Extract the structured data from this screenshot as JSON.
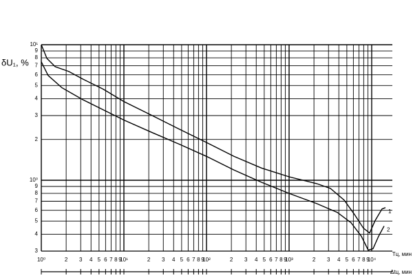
{
  "chart_data": {
    "type": "line",
    "y_label": "δU₁, %",
    "x_label": "Tц, мин",
    "x2_label": "Δtц, мин",
    "xscale": "log",
    "yscale": "log",
    "grid": true,
    "xlim": [
      1,
      17783
    ],
    "ylim": [
      0.3,
      10
    ],
    "xticks": [
      {
        "value": 1,
        "label": "10⁰"
      },
      2,
      3,
      4,
      5,
      6,
      7,
      8,
      9,
      {
        "value": 10,
        "label": "10¹"
      },
      {
        "value": 20,
        "label": "2"
      },
      {
        "value": 30,
        "label": "3"
      },
      {
        "value": 40,
        "label": "4"
      },
      {
        "value": 50,
        "label": "5"
      },
      {
        "value": 60,
        "label": "6"
      },
      {
        "value": 70,
        "label": "7"
      },
      {
        "value": 80,
        "label": "8"
      },
      {
        "value": 90,
        "label": "9"
      },
      {
        "value": 100,
        "label": "10²"
      },
      {
        "value": 200,
        "label": "2"
      },
      {
        "value": 300,
        "label": "3"
      },
      {
        "value": 400,
        "label": "4"
      },
      {
        "value": 500,
        "label": "5"
      },
      {
        "value": 600,
        "label": "6"
      },
      {
        "value": 700,
        "label": "7"
      },
      {
        "value": 800,
        "label": "8"
      },
      {
        "value": 900,
        "label": "9"
      },
      {
        "value": 1000,
        "label": "10³"
      },
      {
        "value": 2000,
        "label": "2"
      },
      {
        "value": 3000,
        "label": "3"
      },
      {
        "value": 4000,
        "label": "4"
      },
      {
        "value": 5000,
        "label": "5"
      },
      {
        "value": 6000,
        "label": "6"
      },
      {
        "value": 7000,
        "label": "7"
      },
      {
        "value": 8000,
        "label": "8"
      },
      {
        "value": 9000,
        "label": "9"
      },
      {
        "value": 10000,
        "label": "10⁴"
      }
    ],
    "yticks": [
      {
        "value": 0.3,
        "label": "3"
      },
      {
        "value": 0.4,
        "label": "4"
      },
      {
        "value": 0.5,
        "label": "5"
      },
      {
        "value": 0.6,
        "label": "6"
      },
      {
        "value": 0.7,
        "label": "7"
      },
      {
        "value": 0.8,
        "label": "8"
      },
      {
        "value": 0.9,
        "label": "9"
      },
      {
        "value": 1,
        "label": "10⁰"
      },
      2,
      3,
      4,
      5,
      6,
      7,
      8,
      9,
      {
        "value": 10,
        "label": "10¹"
      }
    ],
    "series": [
      {
        "name": "1",
        "color": "#000000",
        "x": [
          1,
          1.17,
          1.47,
          2.15,
          3.16,
          5.62,
          10,
          21.5,
          46.4,
          100,
          215,
          464,
          1000,
          2154,
          3162,
          4642,
          6190,
          7943,
          9440,
          11010,
          13340,
          14680
        ],
        "values": [
          10,
          7.92,
          6.89,
          6.35,
          5.59,
          4.7,
          3.81,
          3.02,
          2.39,
          1.9,
          1.5,
          1.23,
          1.06,
          0.944,
          0.87,
          0.714,
          0.559,
          0.443,
          0.408,
          0.504,
          0.614,
          0.628
        ]
      },
      {
        "name": "2",
        "color": "#000000",
        "x": [
          1,
          1.21,
          1.78,
          3.16,
          5.62,
          10,
          21.5,
          46.4,
          100,
          215,
          464,
          1000,
          2154,
          3831,
          5623,
          7499,
          9085,
          10390,
          12120,
          14130
        ],
        "values": [
          7.48,
          5.93,
          4.81,
          3.94,
          3.31,
          2.78,
          2.26,
          1.85,
          1.5,
          1.19,
          0.966,
          0.8,
          0.673,
          0.579,
          0.486,
          0.386,
          0.305,
          0.313,
          0.386,
          0.459
        ]
      }
    ]
  }
}
